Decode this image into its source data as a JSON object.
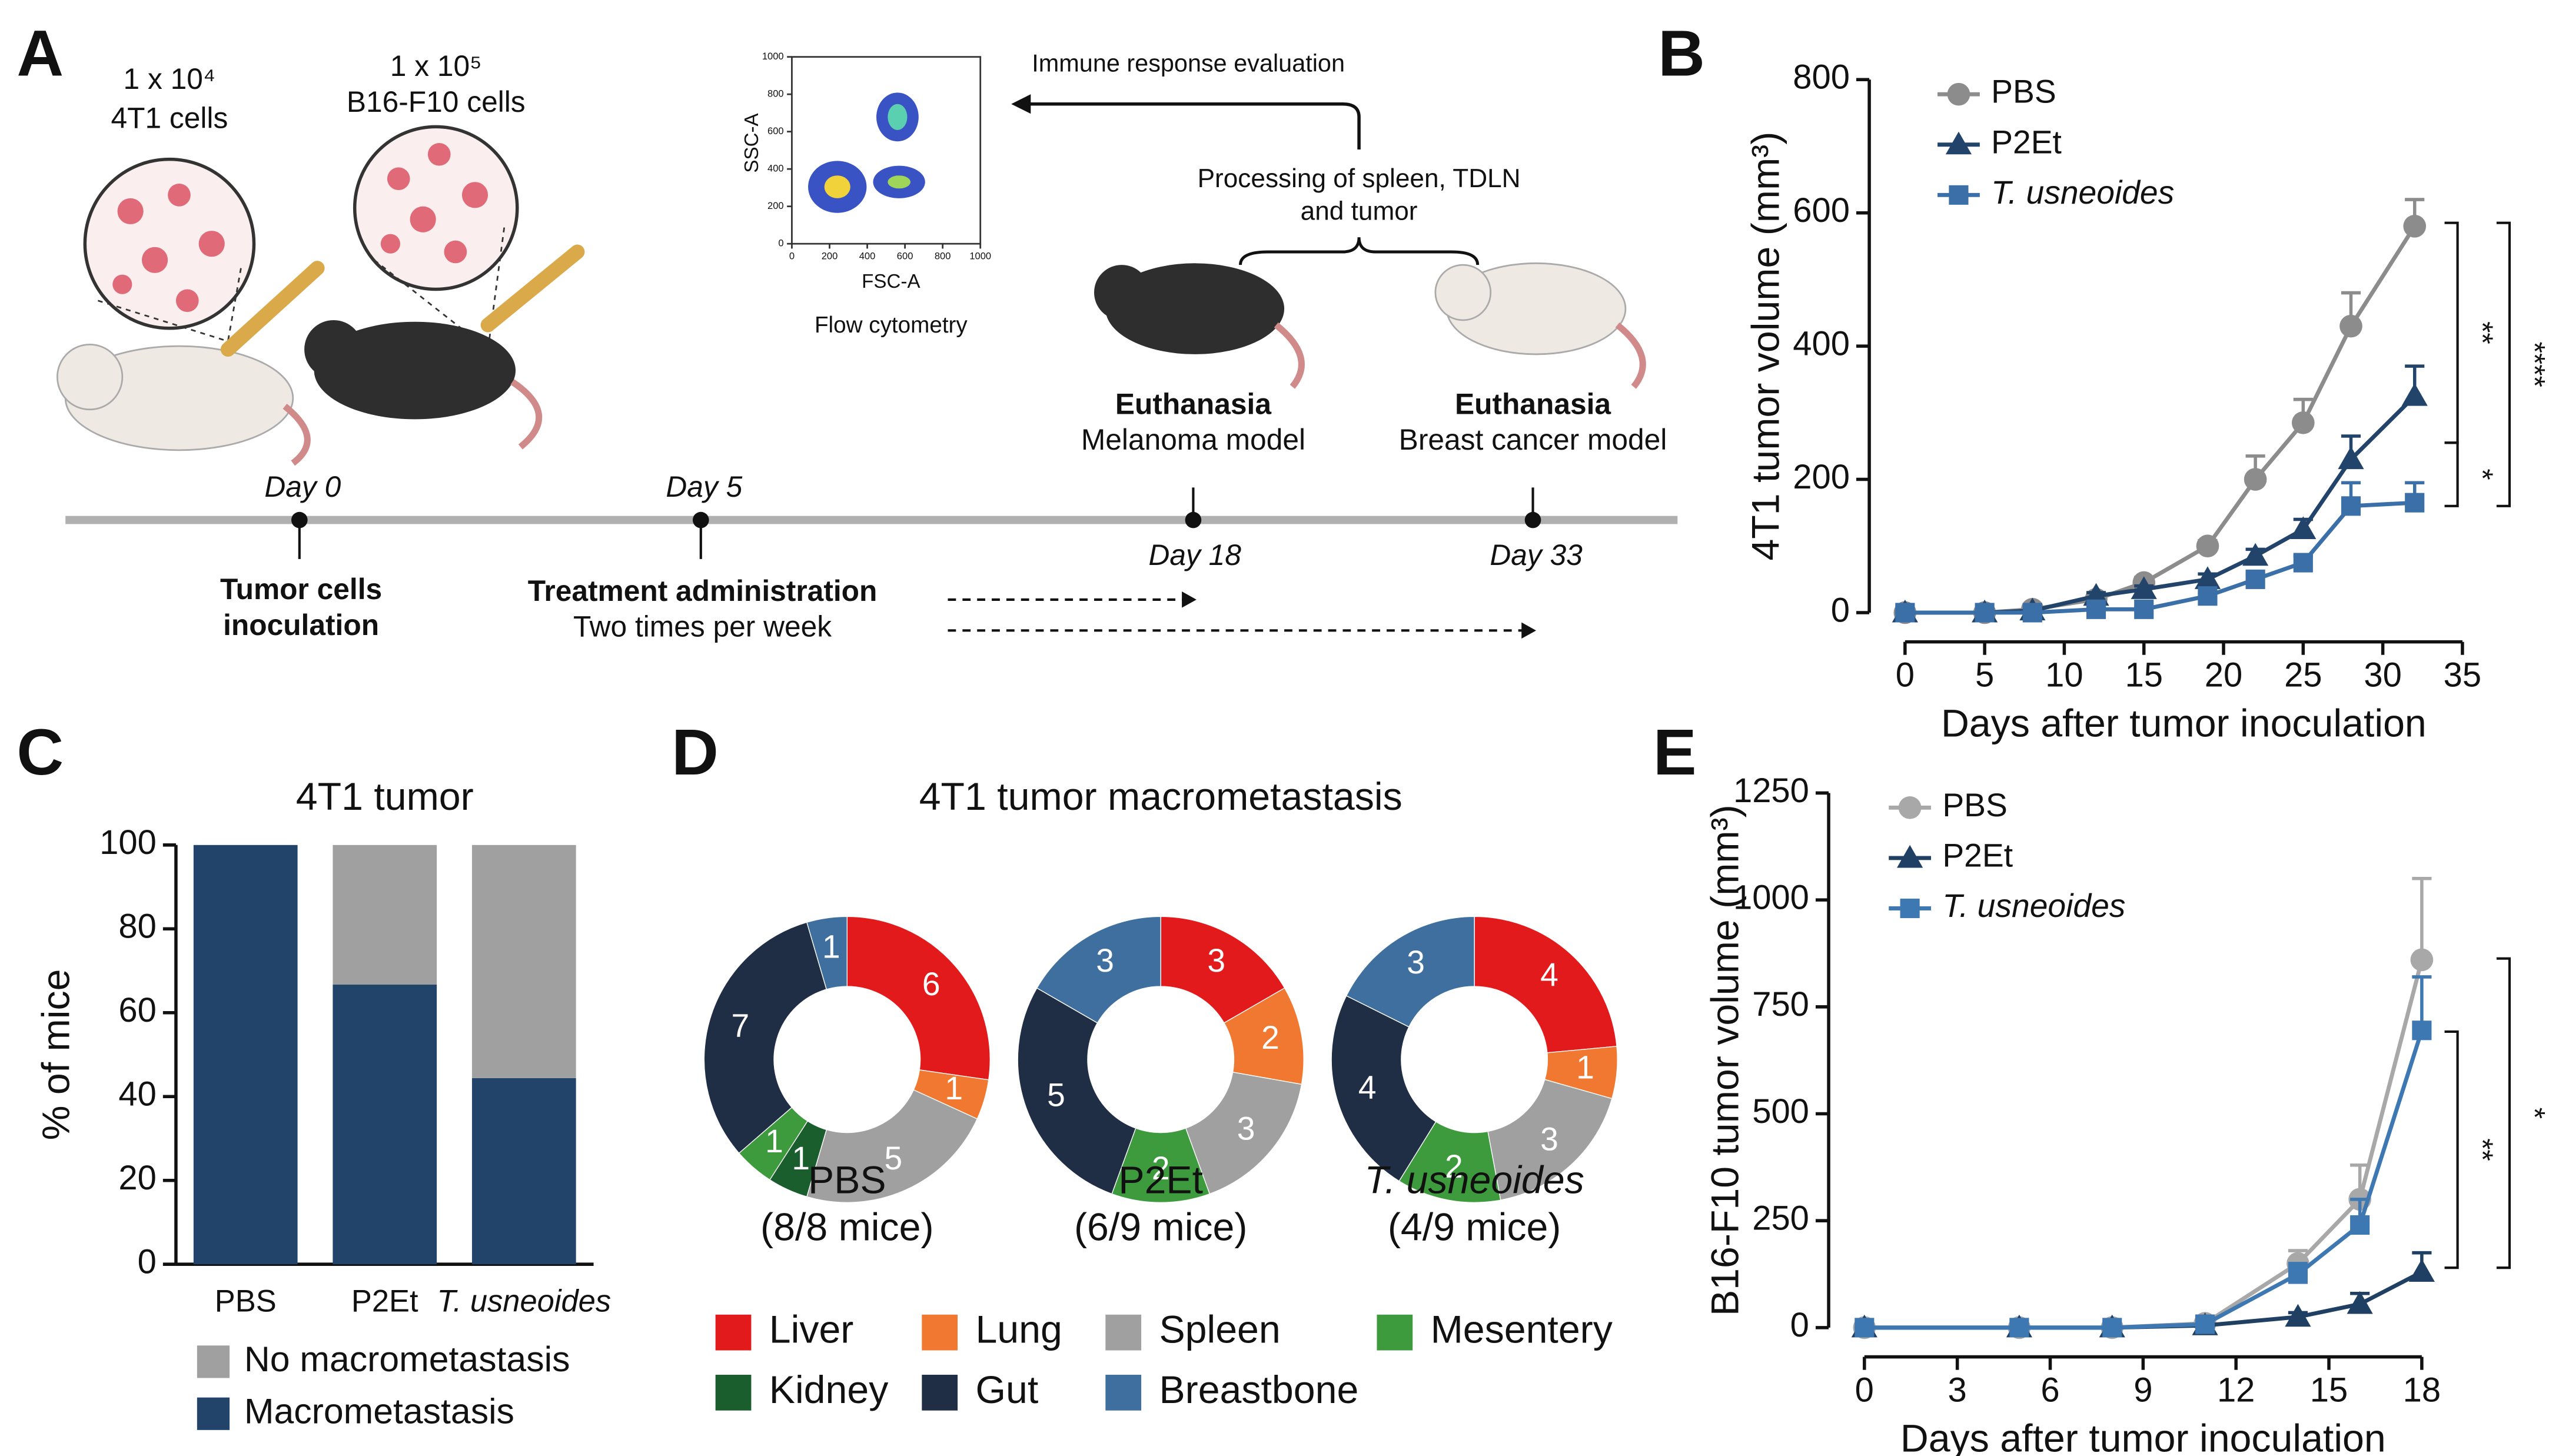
{
  "panels": [
    "A",
    "B",
    "C",
    "D",
    "E"
  ],
  "panel_a": {
    "cells": [
      {
        "count": "1 x 10⁴",
        "name": "4T1 cells"
      },
      {
        "count": "1 x 10⁵",
        "name": "B16-F10 cells"
      }
    ],
    "flow_cytometry": {
      "x_label": "FSC-A",
      "y_label": "SSC-A",
      "xticks": [
        0,
        200,
        400,
        600,
        800,
        1000
      ],
      "yticks": [
        0,
        200,
        400,
        600,
        800,
        1000
      ],
      "caption": "Flow cytometry"
    },
    "immune": "Immune response evaluation",
    "processing": [
      "Processing of spleen, TDLN",
      "and tumor"
    ],
    "euthanasia": [
      {
        "title": "Euthanasia",
        "model": "Melanoma model"
      },
      {
        "title": "Euthanasia",
        "model": "Breast cancer model"
      }
    ],
    "days": [
      "Day 0",
      "Day 5",
      "Day 18",
      "Day 33"
    ],
    "events": [
      [
        "Tumor cells",
        "inoculation"
      ],
      [
        "Treatment administration",
        "Two times per week"
      ]
    ]
  },
  "chart_data": [
    {
      "type": "line",
      "x_label": "Days after tumor inoculation",
      "y_label": "4T1 tumor volume (mm³)",
      "xlim": [
        0,
        35
      ],
      "xticks": [
        0,
        5,
        10,
        15,
        20,
        25,
        30,
        35
      ],
      "ylim": [
        0,
        800
      ],
      "yticks": [
        0,
        200,
        400,
        600,
        800
      ],
      "x": [
        0,
        5,
        8,
        12,
        15,
        19,
        22,
        25,
        28,
        32
      ],
      "series": [
        {
          "name": "PBS",
          "color": "#8c8c8c",
          "marker": "circle",
          "values": [
            0,
            0,
            5,
            20,
            45,
            100,
            200,
            285,
            430,
            580
          ],
          "errors": [
            0,
            0,
            0,
            5,
            8,
            8,
            35,
            35,
            50,
            40
          ]
        },
        {
          "name": "P2Et",
          "color": "#22446a",
          "marker": "triangle",
          "values": [
            0,
            0,
            3,
            25,
            35,
            50,
            85,
            125,
            230,
            325
          ],
          "errors": [
            0,
            0,
            0,
            5,
            5,
            8,
            10,
            15,
            35,
            45
          ]
        },
        {
          "name": "T. usneoides",
          "color": "#3a6fa8",
          "marker": "square",
          "italic": true,
          "values": [
            0,
            0,
            0,
            5,
            5,
            25,
            50,
            75,
            160,
            165
          ],
          "errors": [
            0,
            0,
            0,
            3,
            3,
            5,
            8,
            10,
            35,
            30
          ]
        }
      ],
      "annotations": [
        {
          "text": "**",
          "y": [
            585,
            255
          ]
        },
        {
          "text": "*",
          "y": [
            255,
            160
          ]
        },
        {
          "text": "****",
          "y": [
            585,
            160
          ]
        }
      ]
    },
    {
      "type": "stacked_bar",
      "title": "4T1 tumor",
      "y_label": "% of mice",
      "categories": [
        "PBS",
        "P2Et",
        "T. usneoides"
      ],
      "italic_index": 2,
      "ylim": [
        0,
        100
      ],
      "yticks": [
        0,
        20,
        40,
        60,
        80,
        100
      ],
      "series": [
        {
          "name": "Macrometastasis",
          "color": "#22446a",
          "values": [
            100,
            66.7,
            44.4
          ]
        },
        {
          "name": "No macrometastasis",
          "color": "#a0a0a0",
          "values": [
            0,
            33.3,
            55.6
          ]
        }
      ]
    },
    {
      "type": "donut",
      "title": "4T1 tumor macrometastasis",
      "legend": {
        "categories": [
          "Liver",
          "Lung",
          "Spleen",
          "Mesentery",
          "Kidney",
          "Gut",
          "Breastbone"
        ],
        "colors": [
          "#e31a1c",
          "#f07830",
          "#a0a0a0",
          "#3d9b3d",
          "#1a5e2e",
          "#1f2d45",
          "#3e6f9e"
        ]
      },
      "pies": [
        {
          "name": "PBS",
          "subtitle": "(8/8 mice)",
          "categories": [
            "Liver",
            "Lung",
            "Spleen",
            "Kidney",
            "Mesentery",
            "Gut",
            "Breastbone"
          ],
          "values": [
            6,
            1,
            5,
            1,
            1,
            7,
            1
          ]
        },
        {
          "name": "P2Et",
          "subtitle": "(6/9 mice)",
          "categories": [
            "Liver",
            "Lung",
            "Spleen",
            "Mesentery",
            "Gut",
            "Breastbone"
          ],
          "values": [
            3,
            2,
            3,
            2,
            5,
            3
          ]
        },
        {
          "name": "T. usneoides",
          "subtitle": "(4/9 mice)",
          "italic": true,
          "categories": [
            "Liver",
            "Lung",
            "Spleen",
            "Mesentery",
            "Gut",
            "Breastbone"
          ],
          "values": [
            4,
            1,
            3,
            2,
            4,
            3
          ]
        }
      ]
    },
    {
      "type": "line",
      "x_label": "Days after tumor inoculation",
      "y_label": "B16-F10 tumor volume (mm³)",
      "xlim": [
        0,
        18
      ],
      "xticks": [
        0,
        3,
        6,
        9,
        12,
        15,
        18
      ],
      "ylim": [
        0,
        1250
      ],
      "yticks": [
        0,
        250,
        500,
        750,
        1000,
        1250
      ],
      "x": [
        0,
        5,
        8,
        11,
        14,
        16,
        18
      ],
      "series": [
        {
          "name": "PBS",
          "color": "#a8a8a8",
          "marker": "circle",
          "values": [
            0,
            0,
            0,
            10,
            150,
            300,
            860
          ],
          "errors": [
            0,
            0,
            0,
            5,
            30,
            80,
            190
          ]
        },
        {
          "name": "P2Et",
          "color": "#1f3f63",
          "marker": "triangle",
          "values": [
            0,
            0,
            0,
            5,
            25,
            55,
            130
          ],
          "errors": [
            0,
            0,
            0,
            3,
            10,
            25,
            45
          ]
        },
        {
          "name": "T. usneoides",
          "color": "#3e78b2",
          "marker": "square",
          "italic": true,
          "values": [
            0,
            0,
            0,
            8,
            125,
            240,
            695
          ],
          "errors": [
            0,
            0,
            0,
            5,
            25,
            60,
            125
          ]
        }
      ],
      "annotations": [
        {
          "text": "**",
          "y": [
            692,
            140
          ]
        },
        {
          "text": "*",
          "y": [
            863,
            140
          ]
        }
      ]
    }
  ]
}
